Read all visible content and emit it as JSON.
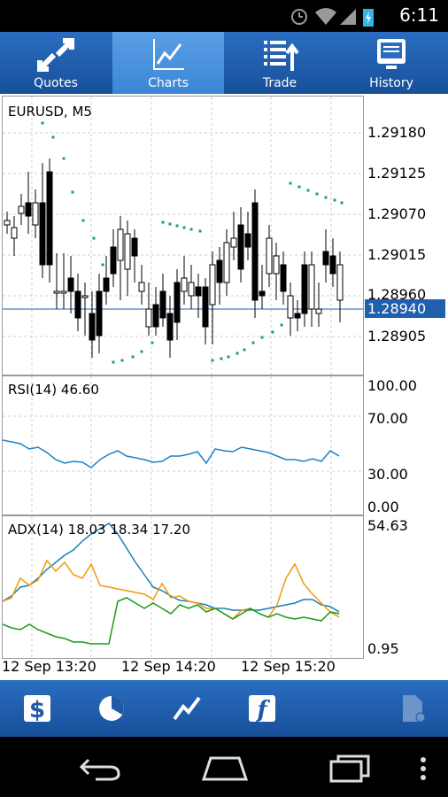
{
  "status": {
    "time": "6:11"
  },
  "tabs": [
    {
      "label": "Quotes",
      "icon": "quotes-arrows-icon"
    },
    {
      "label": "Charts",
      "icon": "chart-line-icon",
      "active": true
    },
    {
      "label": "Trade",
      "icon": "trade-list-icon"
    },
    {
      "label": "History",
      "icon": "history-icon"
    }
  ],
  "chart": {
    "symbol_label": "EURUSD, M5",
    "price_scale": [
      "1.29180",
      "1.29125",
      "1.29070",
      "1.29015",
      "1.28960",
      "1.28905"
    ],
    "current_price": "1.28940",
    "rsi_label": "RSI(14) 46.60",
    "rsi_scale": [
      "100.00",
      "70.00",
      "30.00",
      "0.00"
    ],
    "adx_label": "ADX(14) 18.03 18.34 17.20",
    "adx_scale": [
      "54.63",
      "0.95"
    ],
    "time_labels": [
      "12 Sep 13:20",
      "12 Sep 14:20",
      "12 Sep 15:20"
    ],
    "colors": {
      "accent": "#1e5aa6",
      "price_line": "#1f5fad",
      "rsi": "#1a82c8",
      "adx_blue": "#1a7fb5",
      "adx_orange": "#f09a0c",
      "adx_green": "#1a9a1a",
      "sar": "#1aa06a"
    }
  },
  "bottom_bar": [
    {
      "icon": "dollar-icon"
    },
    {
      "icon": "clock-icon"
    },
    {
      "icon": "chart-line-icon"
    },
    {
      "icon": "function-icon"
    },
    {
      "icon": "new-document-icon"
    }
  ],
  "navbar": [
    {
      "icon": "back-icon"
    },
    {
      "icon": "home-icon"
    },
    {
      "icon": "recents-icon"
    },
    {
      "icon": "menu-icon"
    }
  ]
}
